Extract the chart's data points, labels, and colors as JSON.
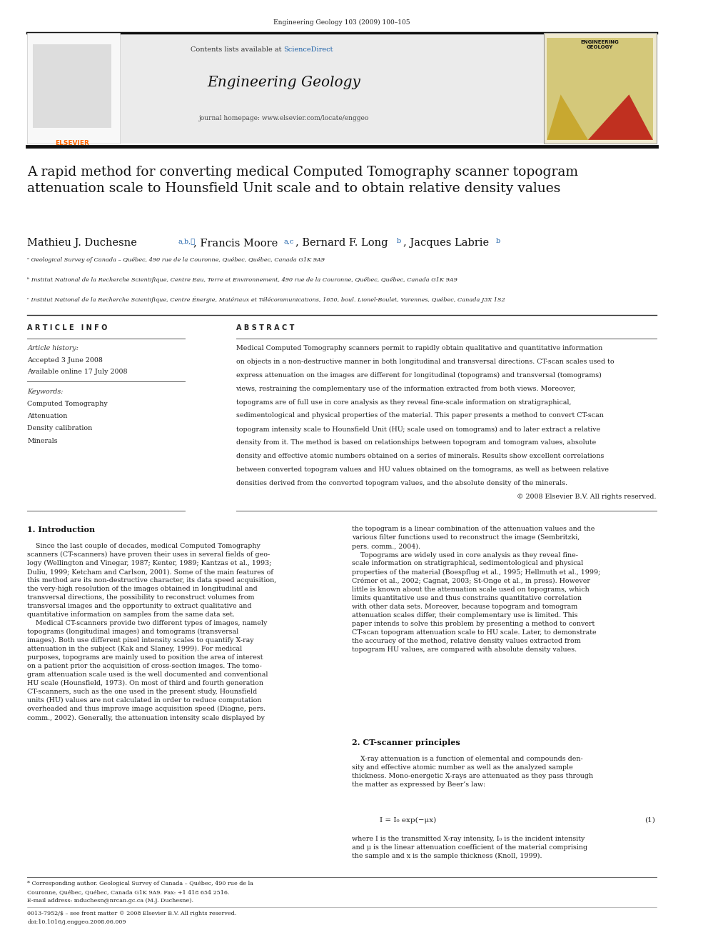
{
  "page_width": 9.92,
  "page_height": 13.23,
  "bg_color": "#ffffff",
  "top_journal_text": "Engineering Geology 103 (2009) 100–105",
  "sciencedirect_color": "#1a5fa8",
  "journal_url": "journal homepage: www.elsevier.com/locate/enggeo",
  "article_title": "A rapid method for converting medical Computed Tomography scanner topogram\nattenuation scale to Hounsfield Unit scale and to obtain relative density values",
  "affil_a": "ᵃ Geological Survey of Canada – Québec, 490 rue de la Couronne, Québec, Québec, Canada G1K 9A9",
  "affil_b": "ᵇ Institut National de la Recherche Scientifique, Centre Eau, Terre et Environnement, 490 rue de la Couronne, Québec, Québec, Canada G1K 9A9",
  "affil_c": "ᶜ Institut National de la Recherche Scientifique, Centre Énergie, Matériaux et Télécommunications, 1650, boul. Lionel-Boulet, Varennes, Québec, Canada J3X 1S2",
  "article_info_title": "A R T I C L E   I N F O",
  "article_history": "Article history:",
  "accepted": "Accepted 3 June 2008",
  "available": "Available online 17 July 2008",
  "keywords_title": "Keywords:",
  "keywords": [
    "Computed Tomography",
    "Attenuation",
    "Density calibration",
    "Minerals"
  ],
  "abstract_title": "A B S T R A C T",
  "section1_title": "1. Introduction",
  "section2_title": "2. CT-scanner principles",
  "footer_issn": "0013-7952/$ – see front matter © 2008 Elsevier B.V. All rights reserved.",
  "footer_doi": "doi:10.1016/j.enggeo.2008.06.009",
  "link_color": "#1a5fa8"
}
